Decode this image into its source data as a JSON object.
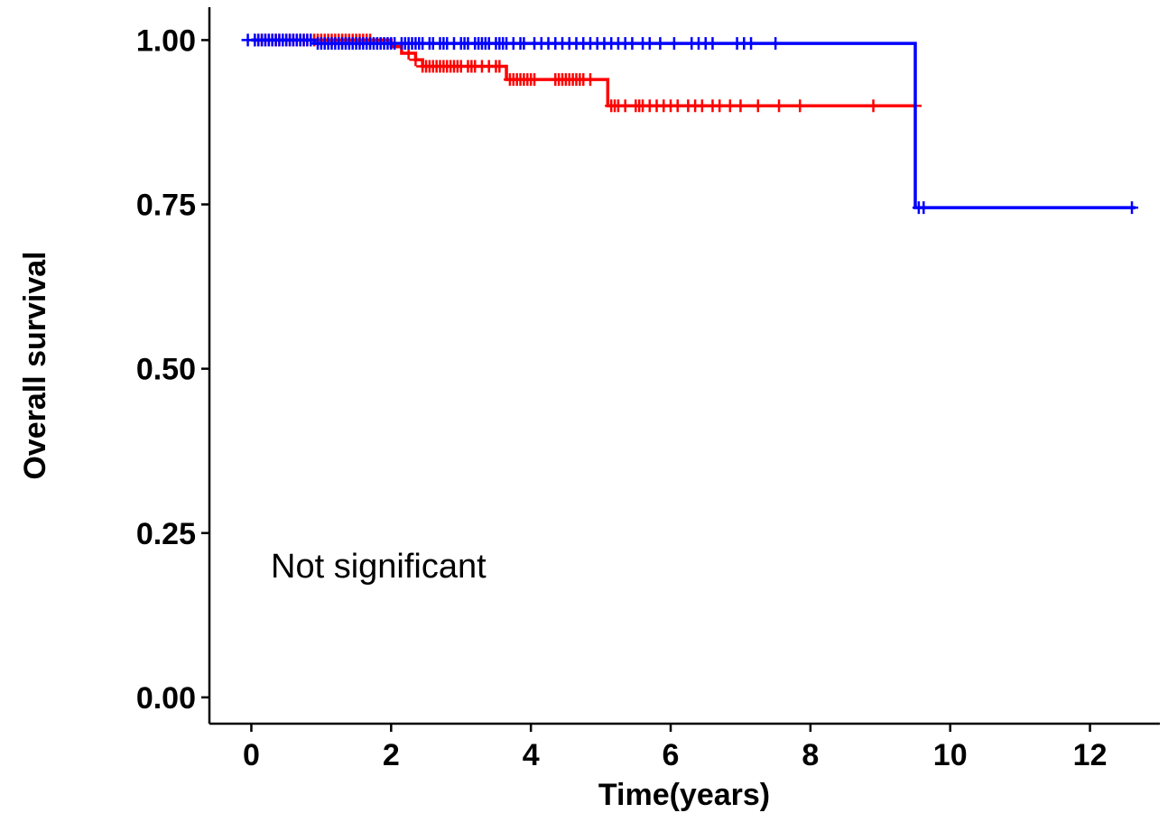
{
  "chart_data": {
    "type": "line",
    "subtype": "kaplan-meier",
    "xlabel": "Time(years)",
    "ylabel": "Overall survival",
    "xlim": [
      -0.6,
      13.0
    ],
    "ylim": [
      -0.04,
      1.05
    ],
    "x_ticks": [
      0,
      2,
      4,
      6,
      8,
      10,
      12
    ],
    "x_tick_labels": [
      "0",
      "2",
      "4",
      "6",
      "8",
      "10",
      "12"
    ],
    "y_ticks": [
      0,
      0.25,
      0.5,
      0.75,
      1.0
    ],
    "y_tick_labels": [
      "0.00",
      "0.25",
      "0.50",
      "0.75",
      "1.00"
    ],
    "grid": false,
    "legend": "none",
    "annotation": "Not significant",
    "series": [
      {
        "color": "#ff0000",
        "steps": [
          [
            0,
            1.0
          ],
          [
            2.0,
            0.99
          ],
          [
            2.15,
            0.98
          ],
          [
            2.35,
            0.97
          ],
          [
            2.45,
            0.96
          ],
          [
            3.65,
            0.94
          ],
          [
            5.1,
            0.9
          ],
          [
            9.5,
            0.9
          ]
        ],
        "censor_x": [
          0.05,
          0.1,
          0.15,
          0.2,
          0.25,
          0.3,
          0.35,
          0.4,
          0.45,
          0.5,
          0.55,
          0.6,
          0.65,
          0.7,
          0.75,
          0.8,
          0.85,
          0.9,
          0.95,
          1.0,
          1.05,
          1.1,
          1.15,
          1.2,
          1.25,
          1.3,
          1.35,
          1.4,
          1.45,
          1.5,
          1.55,
          1.6,
          1.65,
          1.7,
          2.25,
          2.35,
          2.45,
          2.5,
          2.55,
          2.6,
          2.65,
          2.7,
          2.75,
          2.8,
          2.85,
          2.9,
          2.95,
          3.0,
          3.1,
          3.15,
          3.2,
          3.3,
          3.4,
          3.5,
          3.55,
          3.7,
          3.75,
          3.8,
          3.85,
          3.9,
          3.95,
          4.0,
          4.05,
          4.35,
          4.4,
          4.45,
          4.5,
          4.55,
          4.6,
          4.65,
          4.7,
          4.75,
          4.85,
          5.15,
          5.2,
          5.25,
          5.35,
          5.5,
          5.55,
          5.6,
          5.7,
          5.8,
          5.9,
          6.0,
          6.1,
          6.25,
          6.35,
          6.45,
          6.6,
          6.7,
          6.85,
          7.0,
          7.25,
          7.55,
          7.85,
          8.9,
          9.5
        ]
      },
      {
        "color": "#0000ff",
        "steps": [
          [
            0,
            1.0
          ],
          [
            0.9,
            0.995
          ],
          [
            9.5,
            0.745
          ],
          [
            12.65,
            0.745
          ]
        ],
        "censor_x": [
          -0.05,
          0.05,
          0.1,
          0.15,
          0.2,
          0.25,
          0.3,
          0.35,
          0.4,
          0.45,
          0.5,
          0.55,
          0.6,
          0.65,
          0.7,
          0.75,
          0.8,
          0.85,
          0.95,
          1.0,
          1.05,
          1.1,
          1.15,
          1.2,
          1.25,
          1.3,
          1.35,
          1.4,
          1.45,
          1.5,
          1.55,
          1.6,
          1.65,
          1.7,
          1.75,
          1.8,
          1.85,
          1.9,
          1.95,
          2.0,
          2.05,
          2.15,
          2.2,
          2.25,
          2.3,
          2.35,
          2.4,
          2.45,
          2.55,
          2.6,
          2.7,
          2.75,
          2.8,
          2.9,
          3.0,
          3.05,
          3.1,
          3.2,
          3.25,
          3.3,
          3.35,
          3.4,
          3.5,
          3.55,
          3.6,
          3.65,
          3.75,
          3.85,
          3.9,
          4.05,
          4.15,
          4.25,
          4.35,
          4.45,
          4.55,
          4.65,
          4.75,
          4.85,
          4.95,
          5.05,
          5.15,
          5.25,
          5.35,
          5.45,
          5.6,
          5.7,
          5.85,
          6.05,
          6.3,
          6.4,
          6.5,
          6.6,
          6.95,
          7.05,
          7.15,
          7.5,
          9.55,
          9.62,
          12.6
        ]
      }
    ]
  }
}
